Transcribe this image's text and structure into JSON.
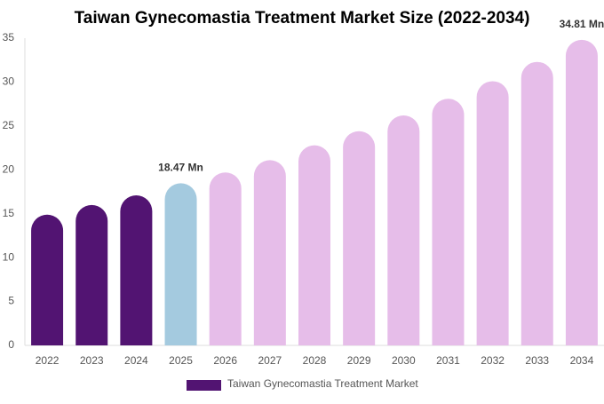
{
  "chart_data": {
    "type": "bar",
    "title": "Taiwan Gynecomastia Treatment Market Size (2022-2034)",
    "categories": [
      "2022",
      "2023",
      "2024",
      "2025",
      "2026",
      "2027",
      "2028",
      "2029",
      "2030",
      "2031",
      "2032",
      "2033",
      "2034"
    ],
    "series": [
      {
        "name": "Taiwan Gynecomastia Treatment Market",
        "color": "#521472",
        "values": [
          14.9,
          16.0,
          17.1,
          18.47,
          19.7,
          21.1,
          22.8,
          24.4,
          26.2,
          28.1,
          30.1,
          32.3,
          34.81
        ],
        "value_labels": [
          null,
          null,
          null,
          "18.47 Mn",
          null,
          null,
          null,
          null,
          null,
          null,
          null,
          null,
          "34.81 Mn"
        ],
        "colors": [
          "#521472",
          "#521472",
          "#521472",
          "#a4cadf",
          "#e6bde9",
          "#e6bde9",
          "#e6bde9",
          "#e6bde9",
          "#e6bde9",
          "#e6bde9",
          "#e6bde9",
          "#e6bde9",
          "#e6bde9"
        ]
      }
    ],
    "ylim": [
      0,
      35
    ],
    "yticks": [
      0,
      5,
      10,
      15,
      20,
      25,
      30,
      35
    ],
    "grid": false
  }
}
